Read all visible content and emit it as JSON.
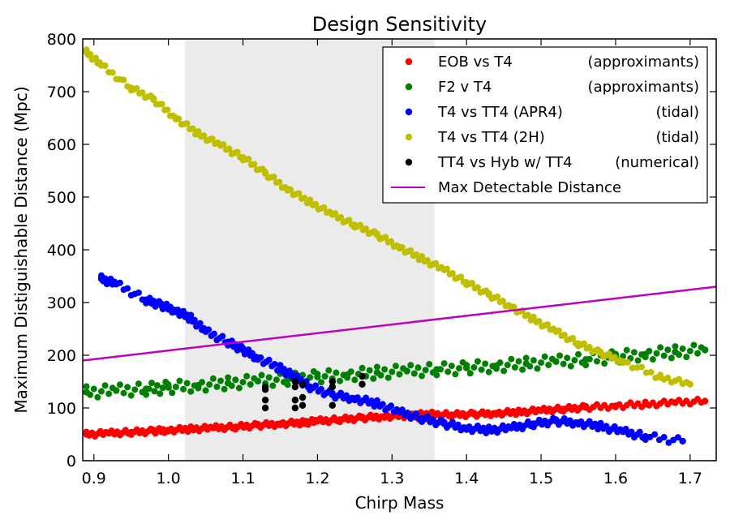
{
  "chart_data": {
    "type": "scatter",
    "title": "Design Sensitivity",
    "xlabel": "Chirp Mass",
    "ylabel": "Maximum Distiguishable Distance (Mpc)",
    "xlim": [
      0.885,
      1.735
    ],
    "ylim": [
      0,
      800
    ],
    "xticks": [
      0.9,
      1.0,
      1.1,
      1.2,
      1.3,
      1.4,
      1.5,
      1.6,
      1.7
    ],
    "xtick_labels": [
      "0.9",
      "1.0",
      "1.1",
      "1.2",
      "1.3",
      "1.4",
      "1.5",
      "1.6",
      "1.7"
    ],
    "yticks": [
      0,
      100,
      200,
      300,
      400,
      500,
      600,
      700,
      800
    ],
    "ytick_labels": [
      "0",
      "100",
      "200",
      "300",
      "400",
      "500",
      "600",
      "700",
      "800"
    ],
    "grid": false,
    "shaded_region": {
      "x_start": 1.022,
      "x_end": 1.357,
      "color": "#ebebeb"
    },
    "legend_position": "top-right",
    "series": [
      {
        "name": "EOB vs T4",
        "note": "(approximants)",
        "color": "#ff0000",
        "kind": "scatter",
        "x": [
          0.89,
          0.92,
          0.95,
          0.98,
          1.0,
          1.03,
          1.06,
          1.09,
          1.12,
          1.15,
          1.18,
          1.2,
          1.23,
          1.26,
          1.29,
          1.32,
          1.35,
          1.38,
          1.41,
          1.44,
          1.47,
          1.5,
          1.53,
          1.56,
          1.6,
          1.64,
          1.68,
          1.72
        ],
        "y": [
          50,
          52,
          54,
          56,
          58,
          60,
          62,
          64,
          67,
          70,
          72,
          75,
          78,
          81,
          84,
          86,
          88,
          87,
          88,
          90,
          92,
          95,
          98,
          101,
          104,
          107,
          110,
          113
        ]
      },
      {
        "name": "F2 v T4",
        "note": "(approximants)",
        "color": "#008000",
        "kind": "scatter",
        "x": [
          0.89,
          0.93,
          0.97,
          1.0,
          1.04,
          1.08,
          1.12,
          1.16,
          1.2,
          1.24,
          1.28,
          1.32,
          1.36,
          1.4,
          1.44,
          1.48,
          1.52,
          1.56,
          1.6,
          1.64,
          1.68,
          1.72
        ],
        "y": [
          130,
          133,
          136,
          139,
          143,
          147,
          151,
          155,
          159,
          163,
          167,
          170,
          173,
          176,
          180,
          184,
          188,
          192,
          197,
          202,
          206,
          210
        ]
      },
      {
        "name": "T4 vs TT4 (APR4)",
        "note": "(tidal)",
        "color": "#0000ff",
        "kind": "scatter",
        "x": [
          0.91,
          0.93,
          0.97,
          0.99,
          1.01,
          1.03,
          1.05,
          1.08,
          1.1,
          1.12,
          1.15,
          1.17,
          1.19,
          1.22,
          1.25,
          1.28,
          1.31,
          1.34,
          1.37,
          1.4,
          1.43,
          1.46,
          1.49,
          1.52,
          1.55,
          1.58,
          1.61,
          1.64,
          1.69
        ],
        "y": [
          345,
          335,
          305,
          295,
          285,
          270,
          245,
          225,
          210,
          195,
          175,
          158,
          140,
          125,
          118,
          108,
          92,
          80,
          70,
          62,
          58,
          62,
          70,
          75,
          72,
          65,
          55,
          46,
          37
        ]
      },
      {
        "name": "T4 vs TT4 (2H)",
        "note": "(tidal)",
        "color": "#bfbf00",
        "kind": "scatter",
        "x": [
          0.89,
          0.91,
          0.95,
          0.98,
          1.01,
          1.04,
          1.07,
          1.1,
          1.13,
          1.16,
          1.19,
          1.22,
          1.25,
          1.28,
          1.31,
          1.34,
          1.37,
          1.4,
          1.43,
          1.46,
          1.49,
          1.52,
          1.55,
          1.58,
          1.61,
          1.66,
          1.7
        ],
        "y": [
          775,
          750,
          707,
          685,
          650,
          620,
          598,
          575,
          545,
          515,
          490,
          467,
          447,
          428,
          405,
          383,
          362,
          338,
          315,
          292,
          268,
          245,
          222,
          204,
          188,
          158,
          145
        ]
      },
      {
        "name": "TT4 vs Hyb w/ TT4",
        "note": "(numerical)",
        "color": "#000000",
        "kind": "scatter",
        "x": [
          1.13,
          1.13,
          1.13,
          1.13,
          1.17,
          1.17,
          1.17,
          1.17,
          1.18,
          1.18,
          1.18,
          1.22,
          1.22,
          1.22,
          1.26,
          1.26
        ],
        "y": [
          100,
          115,
          135,
          140,
          100,
          115,
          140,
          150,
          105,
          120,
          145,
          105,
          140,
          150,
          145,
          160
        ]
      },
      {
        "name": "Max Detectable Distance",
        "note": "",
        "color": "#bf00bf",
        "kind": "line",
        "x": [
          0.885,
          1.735
        ],
        "y": [
          190,
          330
        ]
      }
    ]
  }
}
